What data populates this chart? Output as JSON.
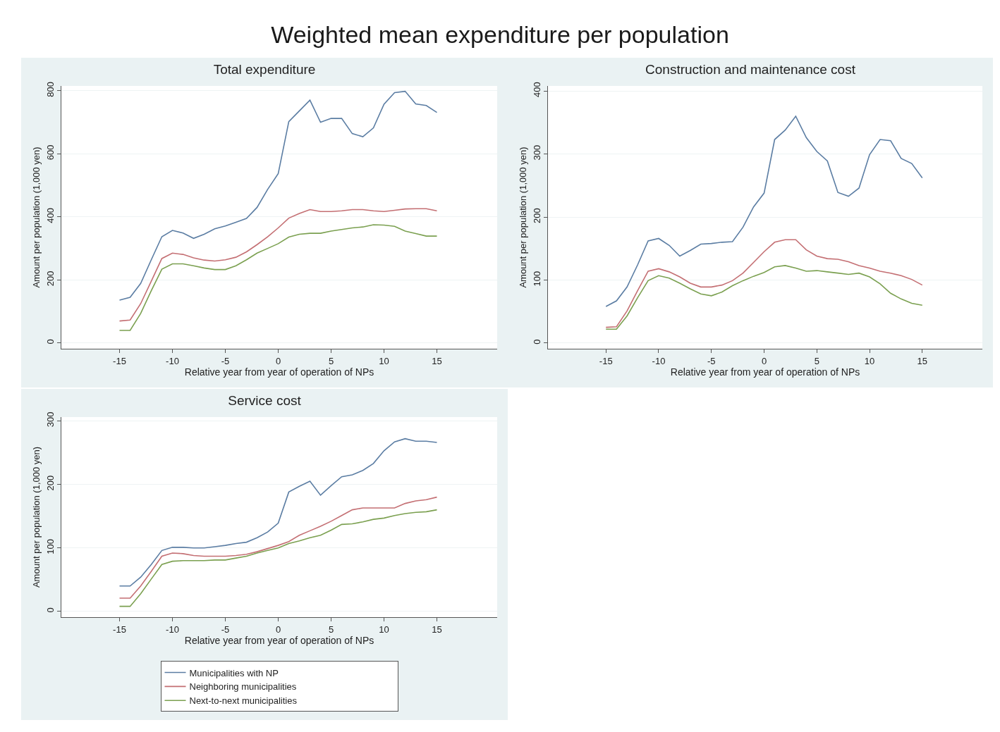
{
  "chart_data": [
    {
      "type": "other",
      "title": "Weighted mean expenditure per population"
    },
    {
      "type": "line",
      "title": "Total expenditure",
      "xlabel": "Relative year from year of operation of NPs",
      "ylabel": "Amount per population (1,000 yen)",
      "x": [
        -15,
        -14,
        -13,
        -12,
        -11,
        -10,
        -9,
        -8,
        -7,
        -6,
        -5,
        -4,
        -3,
        -2,
        -1,
        0,
        1,
        2,
        3,
        4,
        5,
        6,
        7,
        8,
        9,
        10,
        11,
        12,
        13,
        14,
        15
      ],
      "xlim": [
        -20.5,
        20.7
      ],
      "xticks": [
        -15,
        -10,
        -5,
        0,
        5,
        10,
        15
      ],
      "ylim": [
        -18,
        815
      ],
      "yticks": [
        0,
        200,
        400,
        600,
        800
      ],
      "grid": "y",
      "series": [
        {
          "color": "#5b7da3",
          "values": [
            136,
            145,
            189,
            264,
            337,
            357,
            349,
            332,
            345,
            362,
            371,
            383,
            395,
            430,
            487,
            537,
            702,
            736,
            770,
            700,
            712,
            712,
            664,
            654,
            682,
            757,
            794,
            798,
            758,
            753,
            731
          ]
        },
        {
          "color": "#c46f73",
          "values": [
            70,
            73,
            125,
            196,
            268,
            285,
            281,
            270,
            263,
            260,
            264,
            272,
            289,
            312,
            337,
            365,
            396,
            411,
            423,
            417,
            417,
            419,
            423,
            423,
            419,
            417,
            421,
            425,
            426,
            426,
            419
          ]
        },
        {
          "color": "#7ba050",
          "values": [
            40,
            40,
            94,
            166,
            234,
            251,
            251,
            245,
            238,
            233,
            233,
            245,
            264,
            285,
            300,
            315,
            336,
            345,
            348,
            348,
            355,
            360,
            365,
            368,
            375,
            374,
            370,
            355,
            347,
            339,
            339
          ]
        }
      ]
    },
    {
      "type": "line",
      "title": "Construction and maintenance cost",
      "xlabel": "Relative year from year of operation of NPs",
      "ylabel": "Amount per population (1,000 yen)",
      "x": [
        -15,
        -14,
        -13,
        -12,
        -11,
        -10,
        -9,
        -8,
        -7,
        -6,
        -5,
        -4,
        -3,
        -2,
        -1,
        0,
        1,
        2,
        3,
        4,
        5,
        6,
        7,
        8,
        9,
        10,
        11,
        12,
        13,
        14,
        15
      ],
      "xlim": [
        -20.5,
        20.7
      ],
      "xticks": [
        -15,
        -10,
        -5,
        0,
        5,
        10,
        15
      ],
      "ylim": [
        -9,
        408
      ],
      "yticks": [
        0,
        100,
        200,
        300,
        400
      ],
      "grid": "y",
      "series": [
        {
          "color": "#5b7da3",
          "values": [
            58,
            67,
            89,
            124,
            162,
            166,
            155,
            138,
            147,
            157,
            158,
            160,
            161,
            184,
            216,
            238,
            323,
            338,
            360,
            326,
            304,
            289,
            239,
            233,
            246,
            299,
            323,
            321,
            293,
            285,
            262
          ]
        },
        {
          "color": "#c46f73",
          "values": [
            25,
            26,
            51,
            83,
            114,
            118,
            113,
            105,
            95,
            89,
            89,
            92,
            99,
            111,
            128,
            145,
            160,
            164,
            164,
            148,
            138,
            134,
            133,
            129,
            123,
            119,
            114,
            111,
            107,
            101,
            92
          ]
        },
        {
          "color": "#7ba050",
          "values": [
            22,
            22,
            43,
            72,
            99,
            107,
            103,
            95,
            86,
            78,
            75,
            81,
            91,
            99,
            106,
            112,
            121,
            123,
            119,
            114,
            115,
            113,
            111,
            109,
            111,
            105,
            94,
            79,
            70,
            63,
            60
          ]
        }
      ]
    },
    {
      "type": "line",
      "title": "Service cost",
      "xlabel": "Relative year from year of operation of NPs",
      "ylabel": "Amount per population (1,000 yen)",
      "x": [
        -15,
        -14,
        -13,
        -12,
        -11,
        -10,
        -9,
        -8,
        -7,
        -6,
        -5,
        -4,
        -3,
        -2,
        -1,
        0,
        1,
        2,
        3,
        4,
        5,
        6,
        7,
        8,
        9,
        10,
        11,
        12,
        13,
        14,
        15
      ],
      "xlim": [
        -20.5,
        20.7
      ],
      "xticks": [
        -15,
        -10,
        -5,
        0,
        5,
        10,
        15
      ],
      "ylim": [
        -9,
        306
      ],
      "yticks": [
        0,
        100,
        200,
        300
      ],
      "grid": "y",
      "legend": "bottom",
      "series": [
        {
          "name": "Municipalities with NP",
          "color": "#5b7da3",
          "values": [
            40,
            40,
            54,
            74,
            96,
            101,
            101,
            100,
            100,
            102,
            104,
            107,
            109,
            116,
            125,
            139,
            188,
            197,
            205,
            183,
            198,
            212,
            215,
            222,
            233,
            253,
            267,
            272,
            268,
            268,
            266
          ]
        },
        {
          "name": "Neighboring municipalities",
          "color": "#c46f73",
          "values": [
            21,
            21,
            40,
            63,
            87,
            92,
            91,
            88,
            87,
            87,
            87,
            88,
            90,
            94,
            99,
            104,
            110,
            120,
            127,
            134,
            142,
            151,
            160,
            163,
            163,
            163,
            163,
            170,
            174,
            176,
            180
          ]
        },
        {
          "name": "Next-to-next municipalities",
          "color": "#7ba050",
          "values": [
            8,
            8,
            28,
            51,
            74,
            79,
            80,
            80,
            80,
            81,
            81,
            84,
            87,
            92,
            96,
            100,
            107,
            111,
            116,
            120,
            128,
            137,
            138,
            141,
            145,
            147,
            151,
            154,
            156,
            157,
            160
          ]
        }
      ]
    }
  ]
}
